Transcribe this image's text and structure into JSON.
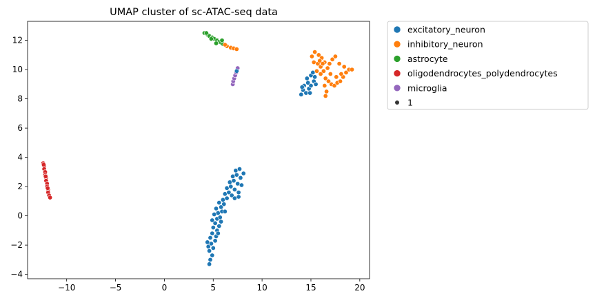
{
  "chart_data": {
    "type": "scatter",
    "title": "UMAP cluster of sc-ATAC-seq data",
    "xlabel": "",
    "ylabel": "",
    "xlim": [
      -14,
      21
    ],
    "ylim": [
      -4.3,
      13.3
    ],
    "xticks": [
      -10,
      -5,
      0,
      5,
      10,
      15,
      20
    ],
    "yticks": [
      -4,
      -2,
      0,
      2,
      4,
      6,
      8,
      10,
      12
    ],
    "grid": false,
    "legend_position": "outside-right",
    "series": [
      {
        "name": "excitatory_neuron",
        "color": "#1f77b4",
        "points": [
          [
            4.6,
            -3.3
          ],
          [
            4.7,
            -3.0
          ],
          [
            4.9,
            -2.7
          ],
          [
            4.6,
            -2.4
          ],
          [
            4.5,
            -2.1
          ],
          [
            4.8,
            -1.9
          ],
          [
            5.0,
            -2.2
          ],
          [
            5.2,
            -1.7
          ],
          [
            4.7,
            -1.5
          ],
          [
            4.9,
            -1.2
          ],
          [
            5.3,
            -1.4
          ],
          [
            5.4,
            -1.0
          ],
          [
            5.0,
            -0.8
          ],
          [
            5.2,
            -0.5
          ],
          [
            5.6,
            -0.7
          ],
          [
            4.9,
            -0.3
          ],
          [
            5.4,
            -0.2
          ],
          [
            5.7,
            -0.1
          ],
          [
            5.1,
            0.1
          ],
          [
            5.5,
            0.2
          ],
          [
            5.9,
            0.3
          ],
          [
            5.3,
            0.5
          ],
          [
            5.8,
            0.6
          ],
          [
            6.1,
            0.8
          ],
          [
            5.6,
            0.9
          ],
          [
            6.0,
            1.1
          ],
          [
            6.4,
            1.2
          ],
          [
            6.2,
            1.5
          ],
          [
            6.6,
            1.6
          ],
          [
            6.9,
            1.4
          ],
          [
            6.4,
            1.9
          ],
          [
            6.8,
            2.0
          ],
          [
            7.2,
            1.8
          ],
          [
            7.6,
            1.6
          ],
          [
            6.7,
            2.3
          ],
          [
            7.1,
            2.4
          ],
          [
            7.5,
            2.2
          ],
          [
            7.9,
            2.1
          ],
          [
            7.0,
            2.7
          ],
          [
            7.4,
            2.8
          ],
          [
            7.8,
            2.6
          ],
          [
            8.1,
            2.9
          ],
          [
            7.3,
            3.1
          ],
          [
            7.7,
            3.2
          ],
          [
            7.2,
            1.2
          ],
          [
            7.6,
            1.3
          ],
          [
            5.8,
            -0.4
          ],
          [
            6.2,
            0.3
          ],
          [
            4.4,
            -1.8
          ],
          [
            5.5,
            -1.2
          ],
          [
            14.0,
            8.3
          ],
          [
            14.2,
            8.6
          ],
          [
            14.5,
            8.4
          ],
          [
            14.8,
            8.7
          ],
          [
            14.3,
            8.9
          ],
          [
            14.7,
            9.1
          ],
          [
            15.0,
            8.9
          ],
          [
            15.3,
            9.2
          ],
          [
            14.6,
            9.4
          ],
          [
            15.0,
            9.6
          ],
          [
            15.4,
            9.5
          ],
          [
            15.2,
            9.8
          ],
          [
            14.9,
            8.4
          ],
          [
            14.1,
            8.8
          ],
          [
            15.5,
            9.0
          ]
        ]
      },
      {
        "name": "inhibitory_neuron",
        "color": "#ff7f0e",
        "points": [
          [
            15.1,
            10.9
          ],
          [
            15.4,
            11.2
          ],
          [
            15.8,
            11.0
          ],
          [
            16.1,
            10.8
          ],
          [
            15.3,
            10.5
          ],
          [
            15.7,
            10.4
          ],
          [
            16.0,
            10.2
          ],
          [
            16.4,
            10.5
          ],
          [
            15.6,
            9.9
          ],
          [
            16.0,
            9.7
          ],
          [
            16.3,
            9.9
          ],
          [
            16.7,
            10.1
          ],
          [
            16.9,
            10.4
          ],
          [
            17.2,
            10.7
          ],
          [
            17.5,
            10.9
          ],
          [
            16.5,
            9.4
          ],
          [
            16.8,
            9.2
          ],
          [
            17.1,
            9.0
          ],
          [
            16.4,
            8.9
          ],
          [
            16.6,
            8.5
          ],
          [
            16.5,
            8.2
          ],
          [
            17.4,
            8.9
          ],
          [
            17.7,
            9.1
          ],
          [
            18.0,
            9.2
          ],
          [
            18.3,
            9.5
          ],
          [
            18.6,
            9.8
          ],
          [
            18.9,
            10.0
          ],
          [
            19.2,
            10.0
          ],
          [
            18.4,
            10.2
          ],
          [
            17.9,
            10.4
          ],
          [
            18.1,
            9.7
          ],
          [
            17.6,
            9.5
          ],
          [
            15.9,
            10.6
          ],
          [
            16.2,
            10.4
          ],
          [
            17.0,
            9.7
          ]
        ]
      },
      {
        "name": "astrocyte",
        "color": "#2ca02c",
        "points": [
          [
            4.1,
            12.5
          ],
          [
            4.4,
            12.4
          ],
          [
            4.6,
            12.3
          ],
          [
            4.9,
            12.2
          ],
          [
            5.1,
            12.1
          ],
          [
            5.4,
            12.0
          ],
          [
            5.6,
            11.9
          ],
          [
            5.3,
            11.8
          ],
          [
            5.8,
            11.85
          ],
          [
            6.0,
            11.75
          ],
          [
            6.2,
            11.7
          ],
          [
            4.8,
            12.1
          ],
          [
            4.3,
            12.5
          ],
          [
            5.9,
            12.0
          ]
        ]
      },
      {
        "name": "oligodendrocytes_polydendrocytes",
        "color": "#d62728",
        "points": [
          [
            -12.4,
            3.6
          ],
          [
            -12.3,
            3.4
          ],
          [
            -12.3,
            3.2
          ],
          [
            -12.2,
            3.0
          ],
          [
            -12.2,
            2.8
          ],
          [
            -12.1,
            2.6
          ],
          [
            -12.1,
            2.4
          ],
          [
            -12.0,
            2.2
          ],
          [
            -12.0,
            2.0
          ],
          [
            -11.9,
            1.8
          ],
          [
            -11.9,
            1.6
          ],
          [
            -11.8,
            1.4
          ],
          [
            -11.7,
            1.25
          ],
          [
            -12.35,
            3.5
          ],
          [
            -12.15,
            2.7
          ],
          [
            -11.95,
            1.9
          ]
        ]
      },
      {
        "name": "microglia",
        "color": "#9467bd",
        "points": [
          [
            7.0,
            9.0
          ],
          [
            7.05,
            9.2
          ],
          [
            7.15,
            9.4
          ],
          [
            7.25,
            9.6
          ],
          [
            7.35,
            9.8
          ],
          [
            7.45,
            10.0
          ],
          [
            7.5,
            10.1
          ]
        ]
      }
    ],
    "size_legend": {
      "label": "1",
      "color": "#333333"
    }
  },
  "extra_points": {
    "inhibitory_near_astrocyte": [
      [
        6.4,
        11.6
      ],
      [
        6.8,
        11.5
      ],
      [
        7.1,
        11.45
      ],
      [
        7.4,
        11.4
      ],
      [
        6.2,
        11.7
      ]
    ],
    "excitatory_near_microglia": [
      [
        7.4,
        9.9
      ]
    ]
  }
}
